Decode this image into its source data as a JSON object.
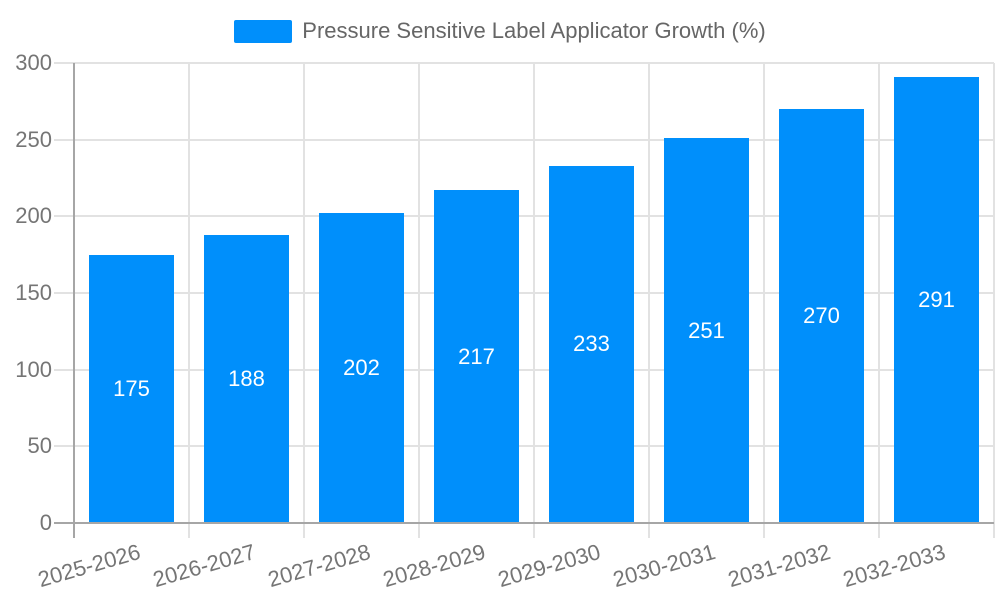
{
  "chart_data": {
    "type": "bar",
    "title": "Pressure Sensitive Label Applicator Growth (%)",
    "categories": [
      "2025-2026",
      "2026-2027",
      "2027-2028",
      "2028-2029",
      "2029-2030",
      "2030-2031",
      "2031-2032",
      "2032-2033"
    ],
    "series": [
      {
        "name": "Pressure Sensitive Label Applicator Growth (%)",
        "values": [
          175,
          188,
          202,
          217,
          233,
          251,
          270,
          291
        ]
      }
    ],
    "xlabel": "",
    "ylabel": "",
    "ylim": [
      0,
      300
    ],
    "yticks": [
      0,
      50,
      100,
      150,
      200,
      250,
      300
    ],
    "grid": "on",
    "legend_position": "top-center",
    "data_labels": "inside-center"
  },
  "legend": {
    "items": [
      {
        "label": "Pressure Sensitive Label Applicator Growth (%)",
        "color": "#008FFB"
      }
    ]
  },
  "colors": {
    "bar": "#008FFB",
    "grid_line": "#e2e2e2",
    "axis_line": "#a6a6a6",
    "tick_label": "#757575",
    "legend_text": "#666666",
    "data_label": "#ffffff",
    "background": "#ffffff"
  }
}
